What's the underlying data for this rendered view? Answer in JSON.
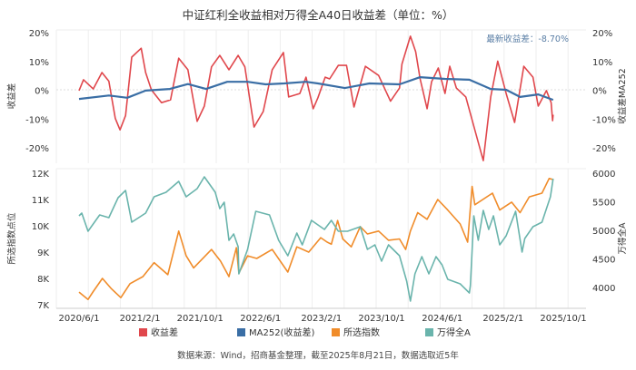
{
  "chart_data": [
    {
      "type": "line",
      "title": "中证红利全收益相对万得全A40日收益差（单位：%）",
      "ylabel": "收益差",
      "ylabel_right": "收益差MA252",
      "ylim": [
        -20,
        20
      ],
      "yticks": [
        "20%",
        "10%",
        "0%",
        "-10%",
        "-20%"
      ],
      "yticks_right": [
        "20%",
        "10%",
        "0%",
        "-10%",
        "-20%"
      ],
      "annotation": "最新收益差：-8.70%",
      "grid": "vertical",
      "series": [
        {
          "name": "收益差",
          "color": "#e0474c",
          "axis": "left",
          "points": [
            [
              "2020-06-01",
              -0.3
            ],
            [
              "2020-06-19",
              3.5
            ],
            [
              "2020-07-28",
              0.3
            ],
            [
              "2020-09-01",
              6
            ],
            [
              "2020-09-29",
              3
            ],
            [
              "2020-10-25",
              -10
            ],
            [
              "2020-11-13",
              -14
            ],
            [
              "2020-12-05",
              -9
            ],
            [
              "2020-12-30",
              11.4
            ],
            [
              "2021-02-06",
              14.5
            ],
            [
              "2021-02-24",
              6
            ],
            [
              "2021-03-19",
              0
            ],
            [
              "2021-04-29",
              -4.5
            ],
            [
              "2021-06-04",
              -3.5
            ],
            [
              "2021-07-07",
              11
            ],
            [
              "2021-08-13",
              7
            ],
            [
              "2021-09-19",
              -11
            ],
            [
              "2021-10-18",
              -5.7
            ],
            [
              "2021-11-16",
              8
            ],
            [
              "2021-12-19",
              12
            ],
            [
              "2022-01-25",
              7
            ],
            [
              "2022-03-03",
              12
            ],
            [
              "2022-03-30",
              8
            ],
            [
              "2022-05-06",
              -13
            ],
            [
              "2022-06-12",
              -7.6
            ],
            [
              "2022-07-18",
              7
            ],
            [
              "2022-09-01",
              13
            ],
            [
              "2022-09-22",
              -2.5
            ],
            [
              "2022-11-06",
              -1.3
            ],
            [
              "2022-12-01",
              4.4
            ],
            [
              "2022-12-30",
              -6.6
            ],
            [
              "2023-01-18",
              -2.8
            ],
            [
              "2023-02-16",
              4.4
            ],
            [
              "2023-03-06",
              3.8
            ],
            [
              "2023-04-10",
              8.5
            ],
            [
              "2023-05-13",
              8.5
            ],
            [
              "2023-06-12",
              -6
            ],
            [
              "2023-07-28",
              8.2
            ],
            [
              "2023-09-19",
              5
            ],
            [
              "2023-11-06",
              -4
            ],
            [
              "2023-12-12",
              0.6
            ],
            [
              "2023-12-22",
              9
            ],
            [
              "2024-01-25",
              18.7
            ],
            [
              "2024-02-15",
              13.3
            ],
            [
              "2024-03-04",
              3.8
            ],
            [
              "2024-04-01",
              -6.6
            ],
            [
              "2024-04-19",
              2.8
            ],
            [
              "2024-05-16",
              7.6
            ],
            [
              "2024-06-12",
              -1.3
            ],
            [
              "2024-07-01",
              8.2
            ],
            [
              "2024-07-28",
              0.6
            ],
            [
              "2024-09-04",
              -2.5
            ],
            [
              "2024-10-10",
              -14
            ],
            [
              "2024-11-13",
              -24.7
            ],
            [
              "2024-12-13",
              -2.5
            ],
            [
              "2025-01-10",
              10
            ],
            [
              "2025-02-13",
              -1.3
            ],
            [
              "2025-03-19",
              -11.4
            ],
            [
              "2025-04-25",
              8.2
            ],
            [
              "2025-06-01",
              4.4
            ],
            [
              "2025-06-22",
              -5.7
            ],
            [
              "2025-07-25",
              -0.3
            ],
            [
              "2025-08-13",
              -4.5
            ],
            [
              "2025-08-19",
              -10.8
            ],
            [
              "2025-08-21",
              -8.7
            ]
          ]
        },
        {
          "name": "MA252(收益差)",
          "color": "#3a6ea5",
          "axis": "right",
          "points": [
            [
              "2020-06-01",
              -3.2
            ],
            [
              "2020-09-29",
              -2
            ],
            [
              "2020-12-12",
              -2.8
            ],
            [
              "2021-02-24",
              -0.3
            ],
            [
              "2021-06-01",
              0.3
            ],
            [
              "2021-08-13",
              2
            ],
            [
              "2021-10-25",
              0.3
            ],
            [
              "2022-01-18",
              2.8
            ],
            [
              "2022-04-10",
              2.8
            ],
            [
              "2022-06-22",
              1.9
            ],
            [
              "2022-09-04",
              2.2
            ],
            [
              "2022-12-01",
              2.8
            ],
            [
              "2023-01-18",
              2.2
            ],
            [
              "2023-05-06",
              0.6
            ],
            [
              "2023-08-13",
              2.2
            ],
            [
              "2023-12-12",
              1.9
            ],
            [
              "2024-03-04",
              4.4
            ],
            [
              "2024-06-12",
              3.8
            ],
            [
              "2024-09-18",
              3.5
            ],
            [
              "2024-12-13",
              0.3
            ],
            [
              "2025-02-13",
              0
            ],
            [
              "2025-04-10",
              -2.5
            ],
            [
              "2025-06-22",
              -1.6
            ],
            [
              "2025-08-21",
              -3.5
            ]
          ]
        }
      ]
    },
    {
      "type": "line",
      "ylabel": "所选指数点位",
      "ylabel_right": "万得全A",
      "ylim": [
        7000,
        12000
      ],
      "ylim_right": [
        4000,
        6000
      ],
      "yticks": [
        "12K",
        "11K",
        "10K",
        "9K",
        "8K",
        "7K"
      ],
      "yticks_right": [
        "6000",
        "5500",
        "5000",
        "4500",
        "4000"
      ],
      "xticks": [
        "2020/6/1",
        "2021/2/1",
        "2021/10/1",
        "2022/6/1",
        "2023/2/1",
        "2023/10/1",
        "2024/6/1",
        "2025/2/1",
        "2025/10/1"
      ],
      "grid": "vertical",
      "series": [
        {
          "name": "所选指数",
          "color": "#f08c2a",
          "axis": "left",
          "points": [
            [
              "2020-06-01",
              7480
            ],
            [
              "2020-07-07",
              7200
            ],
            [
              "2020-07-28",
              7500
            ],
            [
              "2020-09-03",
              8000
            ],
            [
              "2020-10-10",
              7600
            ],
            [
              "2020-11-16",
              7270
            ],
            [
              "2020-12-23",
              7800
            ],
            [
              "2021-02-13",
              8070
            ],
            [
              "2021-03-30",
              8600
            ],
            [
              "2021-05-24",
              8140
            ],
            [
              "2021-07-07",
              9800
            ],
            [
              "2021-08-06",
              8860
            ],
            [
              "2021-09-05",
              8400
            ],
            [
              "2021-11-16",
              9100
            ],
            [
              "2021-12-22",
              8660
            ],
            [
              "2022-01-25",
              8070
            ],
            [
              "2022-02-24",
              9170
            ],
            [
              "2022-03-06",
              8200
            ],
            [
              "2022-04-10",
              8860
            ],
            [
              "2022-05-17",
              8760
            ],
            [
              "2022-07-18",
              9100
            ],
            [
              "2022-09-19",
              8240
            ],
            [
              "2022-10-25",
              9200
            ],
            [
              "2022-12-12",
              9000
            ],
            [
              "2023-01-29",
              9550
            ],
            [
              "2023-02-24",
              9380
            ],
            [
              "2023-03-13",
              9300
            ],
            [
              "2023-04-07",
              10200
            ],
            [
              "2023-04-28",
              9500
            ],
            [
              "2023-06-01",
              9200
            ],
            [
              "2023-07-07",
              9970
            ],
            [
              "2023-08-05",
              9690
            ],
            [
              "2023-09-19",
              9800
            ],
            [
              "2023-10-29",
              9450
            ],
            [
              "2023-12-12",
              9500
            ],
            [
              "2024-01-06",
              9100
            ],
            [
              "2024-01-25",
              9800
            ],
            [
              "2024-02-23",
              10500
            ],
            [
              "2024-04-01",
              10250
            ],
            [
              "2024-05-14",
              11000
            ],
            [
              "2024-06-23",
              10600
            ],
            [
              "2024-08-12",
              10070
            ],
            [
              "2024-09-11",
              9380
            ],
            [
              "2024-09-29",
              11500
            ],
            [
              "2024-10-10",
              10800
            ],
            [
              "2024-12-20",
              11240
            ],
            [
              "2025-01-18",
              10600
            ],
            [
              "2025-03-07",
              10900
            ],
            [
              "2025-04-10",
              10500
            ],
            [
              "2025-05-17",
              11100
            ],
            [
              "2025-07-07",
              11240
            ],
            [
              "2025-08-05",
              11800
            ],
            [
              "2025-08-21",
              11760
            ]
          ]
        },
        {
          "name": "万得全A",
          "color": "#6ab4ac",
          "axis": "right",
          "points": [
            [
              "2020-06-01",
              5254
            ],
            [
              "2020-06-12",
              5302
            ],
            [
              "2020-07-07",
              4984
            ],
            [
              "2020-08-23",
              5270
            ],
            [
              "2020-09-29",
              5222
            ],
            [
              "2020-11-05",
              5571
            ],
            [
              "2020-12-05",
              5698
            ],
            [
              "2020-12-30",
              5143
            ],
            [
              "2021-02-24",
              5302
            ],
            [
              "2021-03-30",
              5587
            ],
            [
              "2021-05-17",
              5667
            ],
            [
              "2021-07-07",
              5857
            ],
            [
              "2021-08-06",
              5587
            ],
            [
              "2021-09-19",
              5730
            ],
            [
              "2021-10-18",
              5937
            ],
            [
              "2021-12-01",
              5667
            ],
            [
              "2021-12-19",
              5381
            ],
            [
              "2022-01-06",
              5492
            ],
            [
              "2022-01-25",
              4825
            ],
            [
              "2022-02-13",
              4937
            ],
            [
              "2022-03-03",
              4714
            ],
            [
              "2022-03-06",
              4238
            ],
            [
              "2022-04-10",
              4667
            ],
            [
              "2022-05-13",
              5333
            ],
            [
              "2022-07-07",
              5270
            ],
            [
              "2022-08-13",
              4825
            ],
            [
              "2022-09-19",
              4556
            ],
            [
              "2022-10-25",
              4952
            ],
            [
              "2022-11-16",
              4746
            ],
            [
              "2022-12-23",
              5175
            ],
            [
              "2023-02-13",
              5016
            ],
            [
              "2023-03-13",
              5175
            ],
            [
              "2023-04-10",
              4984
            ],
            [
              "2023-05-17",
              4984
            ],
            [
              "2023-07-07",
              5063
            ],
            [
              "2023-08-05",
              4667
            ],
            [
              "2023-09-04",
              4746
            ],
            [
              "2023-10-01",
              4460
            ],
            [
              "2023-10-29",
              4746
            ],
            [
              "2023-12-12",
              4556
            ],
            [
              "2024-01-10",
              4111
            ],
            [
              "2024-01-25",
              3762
            ],
            [
              "2024-02-12",
              4238
            ],
            [
              "2024-03-11",
              4540
            ],
            [
              "2024-04-08",
              4238
            ],
            [
              "2024-05-07",
              4540
            ],
            [
              "2024-05-31",
              4397
            ],
            [
              "2024-06-23",
              4143
            ],
            [
              "2024-08-12",
              4063
            ],
            [
              "2024-09-18",
              3905
            ],
            [
              "2024-09-22",
              4032
            ],
            [
              "2024-10-06",
              5254
            ],
            [
              "2024-10-24",
              4825
            ],
            [
              "2024-11-13",
              5349
            ],
            [
              "2024-12-05",
              5016
            ],
            [
              "2024-12-24",
              5254
            ],
            [
              "2025-01-18",
              4746
            ],
            [
              "2025-02-13",
              4905
            ],
            [
              "2025-03-23",
              5333
            ],
            [
              "2025-04-18",
              4619
            ],
            [
              "2025-04-29",
              4857
            ],
            [
              "2025-06-01",
              5063
            ],
            [
              "2025-07-07",
              5143
            ],
            [
              "2025-08-10",
              5587
            ],
            [
              "2025-08-21",
              5905
            ]
          ]
        }
      ]
    }
  ],
  "legend": [
    {
      "label": "收益差",
      "color": "#e0474c"
    },
    {
      "label": "MA252(收益差)",
      "color": "#3a6ea5"
    },
    {
      "label": "所选指数",
      "color": "#f08c2a"
    },
    {
      "label": "万得全A",
      "color": "#6ab4ac"
    }
  ],
  "annotation_color": "#5b7fa6",
  "source": "数据来源：Wind，招商基金整理，截至2025年8月21日，数据选取近5年"
}
